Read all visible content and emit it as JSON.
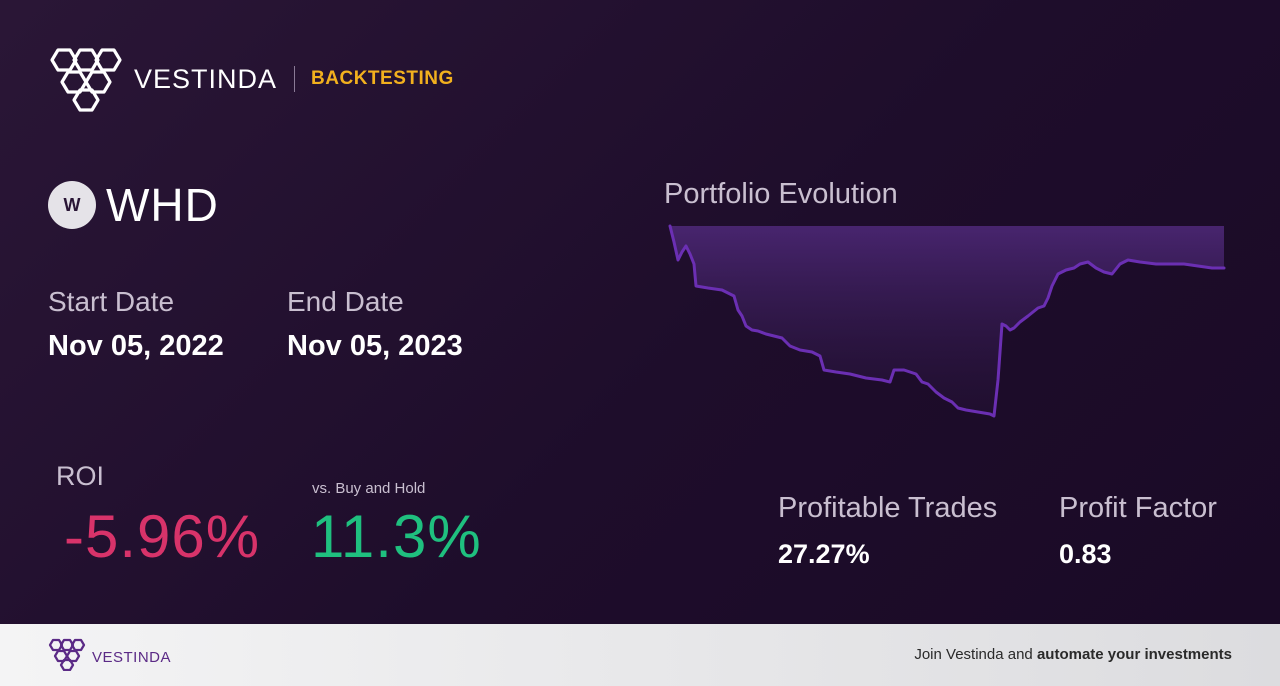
{
  "brand": {
    "name": "VESTINDA",
    "section": "BACKTESTING",
    "accent": "#f2b01e"
  },
  "ticker": {
    "badge": "W",
    "symbol": "WHD"
  },
  "dates": {
    "start_label": "Start Date",
    "start_value": "Nov 05, 2022",
    "end_label": "End Date",
    "end_value": "Nov 05, 2023"
  },
  "roi": {
    "label": "ROI",
    "value": "-5.96%",
    "value_color": "#d8336a",
    "benchmark_label": "vs. Buy and Hold",
    "benchmark_value": "11.3%",
    "benchmark_color": "#1fc07f"
  },
  "chart": {
    "title": "Portfolio Evolution",
    "line_color": "#6b2fb3"
  },
  "stats": {
    "profitable_trades_label": "Profitable Trades",
    "profitable_trades_value": "27.27%",
    "profit_factor_label": "Profit Factor",
    "profit_factor_value": "0.83"
  },
  "footer": {
    "brand": "VESTINDA",
    "cta_prefix": "Join Vestinda and ",
    "cta_bold": "automate your investments"
  }
}
